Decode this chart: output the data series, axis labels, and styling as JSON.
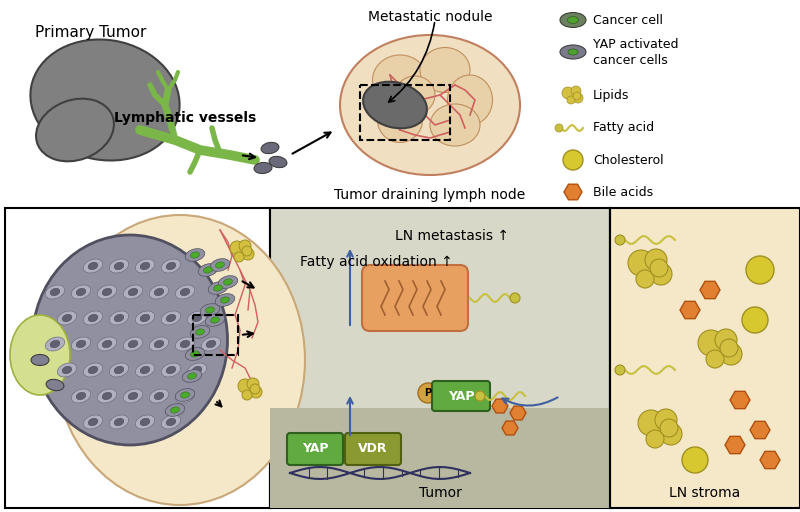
{
  "title": "",
  "bg_color": "#ffffff",
  "legend_items": [
    {
      "label": "Cancer cell",
      "type": "cancer_cell"
    },
    {
      "label": "YAP activated\ncancer cells",
      "type": "yap_cancer_cell"
    },
    {
      "label": "Lipids",
      "type": "lipids"
    },
    {
      "label": "Fatty acid",
      "type": "fatty_acid"
    },
    {
      "label": "Cholesterol",
      "type": "cholesterol"
    },
    {
      "label": "Bile acids",
      "type": "bile_acids"
    }
  ],
  "colors": {
    "tumor_gray": "#808080",
    "tumor_dark": "#5a5a5a",
    "lymph_green": "#7ab648",
    "lymph_light": "#a8c85a",
    "cell_gray": "#7a7a8a",
    "cell_green": "#5aaa3a",
    "vessel_red": "#d06060",
    "stroma_bg": "#f5e8c8",
    "nodule_bg": "#f0dfc0",
    "lipid_yellow": "#d4c040",
    "cholesterol_yellow": "#d8c830",
    "bile_orange": "#e07030",
    "fatty_chain": "#c8c040",
    "mitochondria_bg": "#e8a060",
    "yap_green": "#60aa40",
    "vdr_olive": "#8a9a30",
    "pathway_bg": "#b0b8a0",
    "arrow_blue": "#4060a0",
    "dna_dark": "#303060"
  },
  "texts": {
    "primary_tumor": "Primary Tumor",
    "lymphatic_vessels": "Lymphatic vessels",
    "metastatic_nodule": "Metastatic nodule",
    "tumor_draining": "Tumor draining lymph node",
    "ln_metastasis": "LN metastasis ↑",
    "fatty_acid_ox": "Fatty acid oxidation ↑",
    "tumor_label": "Tumor",
    "ln_stroma": "LN stroma",
    "yap_label": "YAP",
    "vdr_label": "VDR",
    "p_label": "P"
  }
}
